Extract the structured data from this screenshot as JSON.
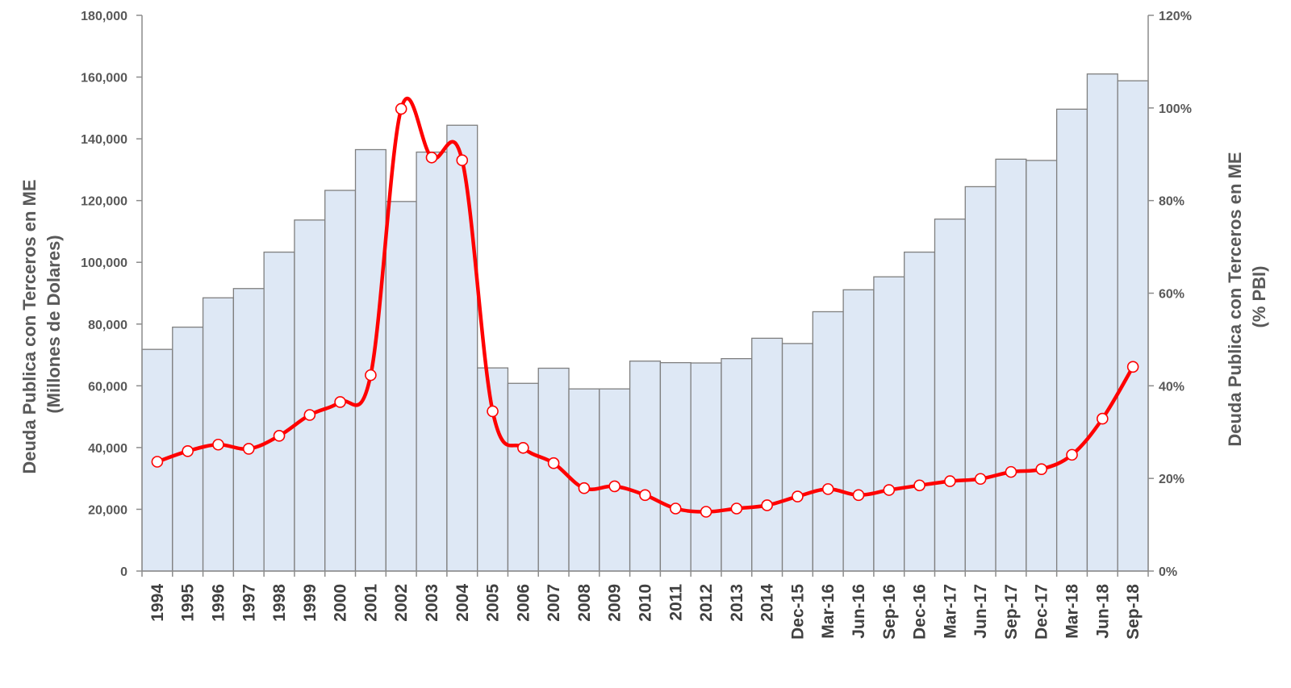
{
  "chart_data": {
    "type": "bar+line",
    "categories": [
      "1994",
      "1995",
      "1996",
      "1997",
      "1998",
      "1999",
      "2000",
      "2001",
      "2002",
      "2003",
      "2004",
      "2005",
      "2006",
      "2007",
      "2008",
      "2009",
      "2010",
      "2011",
      "2012",
      "2013",
      "2014",
      "Dec-15",
      "Mar-16",
      "Jun-16",
      "Sep-16",
      "Dec-16",
      "Mar-17",
      "Jun-17",
      "Sep-17",
      "Dec-17",
      "Mar-18",
      "Jun-18",
      "Sep-18"
    ],
    "series": [
      {
        "type": "bar",
        "axis": "left",
        "values": [
          71800,
          79000,
          88500,
          91500,
          103300,
          113700,
          123300,
          136500,
          119700,
          135700,
          144400,
          65800,
          60800,
          65700,
          59000,
          59000,
          68000,
          67500,
          67400,
          68800,
          75400,
          73700,
          84000,
          91100,
          95300,
          103300,
          114000,
          124500,
          133400,
          133000,
          149600,
          161000,
          158800
        ],
        "color": "#dee8f5",
        "border_color": "#7f7f7f"
      },
      {
        "type": "line",
        "axis": "right",
        "values": [
          23.6,
          25.9,
          27.3,
          26.4,
          29.2,
          33.7,
          36.5,
          42.3,
          99.8,
          89.3,
          88.7,
          34.5,
          26.6,
          23.3,
          17.9,
          18.3,
          16.4,
          13.5,
          12.8,
          13.5,
          14.2,
          16.1,
          17.7,
          16.4,
          17.5,
          18.5,
          19.4,
          19.9,
          21.4,
          22.0,
          25.1,
          32.9,
          44.1
        ],
        "color": "#ff0000",
        "marker_fill": "#ffffff"
      }
    ],
    "y_left": {
      "label_line1": "Deuda Publica con Terceros en ME",
      "label_line2": "(Millones de Dolares)",
      "ylim": [
        0,
        180000
      ],
      "ticks": [
        0,
        20000,
        40000,
        60000,
        80000,
        100000,
        120000,
        140000,
        160000,
        180000
      ],
      "tick_labels": [
        "0",
        "20,000",
        "40,000",
        "60,000",
        "80,000",
        "100,000",
        "120,000",
        "140,000",
        "160,000",
        "180,000"
      ]
    },
    "y_right": {
      "label_line1": "Deuda Publica con Terceros en ME",
      "label_line2": "(% PBI)",
      "ylim": [
        0,
        120
      ],
      "ticks": [
        0,
        20,
        40,
        60,
        80,
        100,
        120
      ],
      "tick_labels": [
        "0%",
        "20%",
        "40%",
        "60%",
        "80%",
        "100%",
        "120%"
      ]
    },
    "grid": false,
    "legend": "none"
  }
}
